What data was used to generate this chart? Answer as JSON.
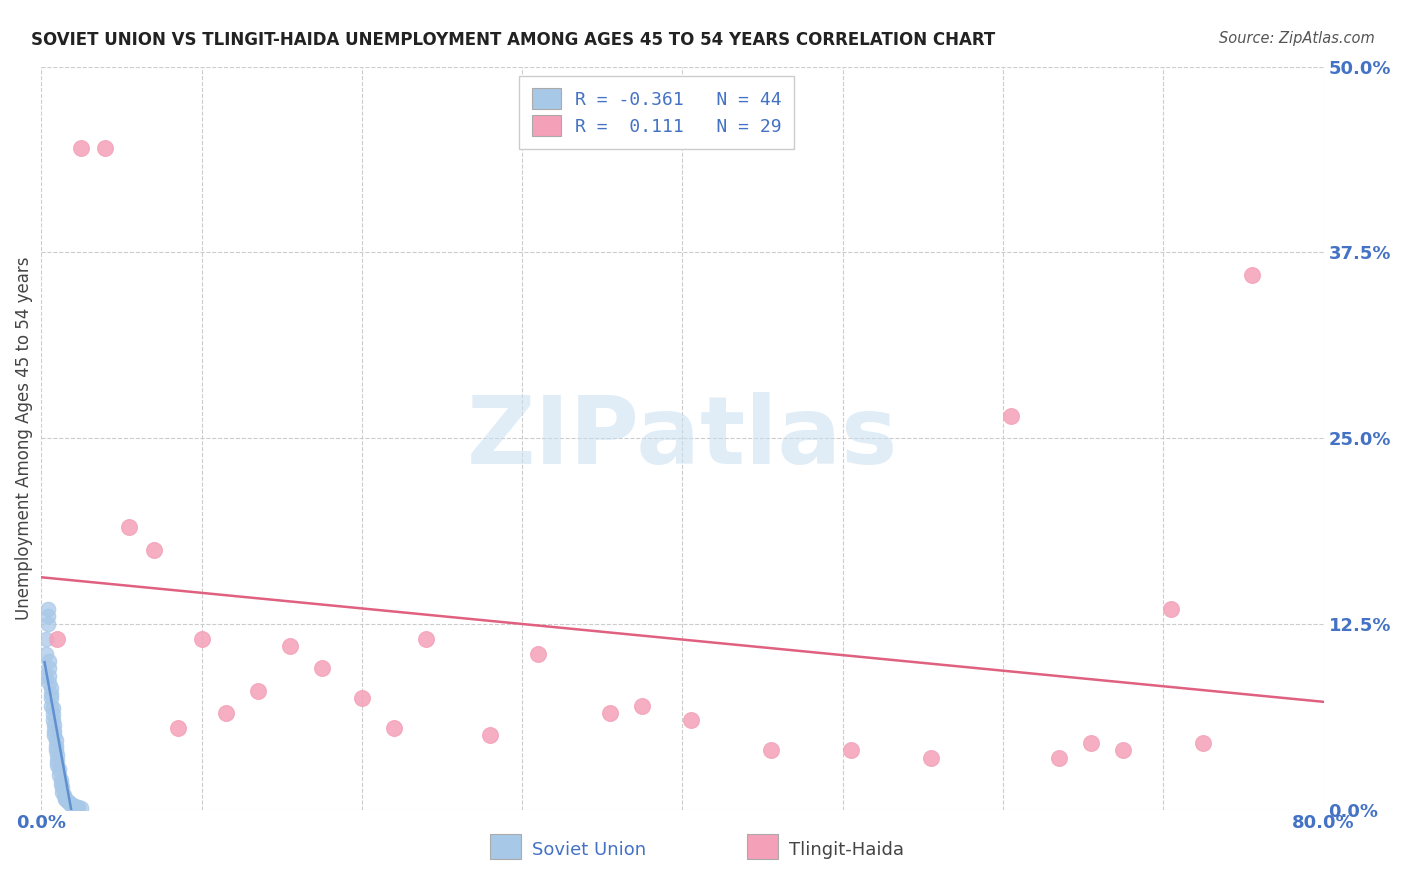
{
  "title": "SOVIET UNION VS TLINGIT-HAIDA UNEMPLOYMENT AMONG AGES 45 TO 54 YEARS CORRELATION CHART",
  "source": "Source: ZipAtlas.com",
  "tick_color": "#4472c4",
  "ylabel": "Unemployment Among Ages 45 to 54 years",
  "xlim": [
    0.0,
    0.8
  ],
  "ylim": [
    0.0,
    0.5
  ],
  "xticks": [
    0.0,
    0.1,
    0.2,
    0.3,
    0.4,
    0.5,
    0.6,
    0.7,
    0.8
  ],
  "yticks": [
    0.0,
    0.125,
    0.25,
    0.375,
    0.5
  ],
  "ytick_labels": [
    "0.0%",
    "12.5%",
    "25.0%",
    "37.5%",
    "50.0%"
  ],
  "xtick_labels": [
    "0.0%",
    "",
    "",
    "",
    "",
    "",
    "",
    "",
    "80.0%"
  ],
  "soviet_color": "#a8c8e8",
  "tlingit_color": "#f4a0b8",
  "soviet_line_color": "#6090d0",
  "tlingit_line_color": "#e06080",
  "background_color": "#ffffff",
  "grid_color": "#cccccc",
  "soviet_points_x": [
    0.002,
    0.003,
    0.003,
    0.004,
    0.004,
    0.004,
    0.005,
    0.005,
    0.005,
    0.005,
    0.006,
    0.006,
    0.006,
    0.006,
    0.007,
    0.007,
    0.007,
    0.008,
    0.008,
    0.008,
    0.009,
    0.009,
    0.009,
    0.01,
    0.01,
    0.01,
    0.011,
    0.011,
    0.012,
    0.012,
    0.013,
    0.013,
    0.014,
    0.015,
    0.015,
    0.016,
    0.017,
    0.018,
    0.019,
    0.02,
    0.021,
    0.022,
    0.023,
    0.025
  ],
  "soviet_points_y": [
    0.09,
    0.105,
    0.115,
    0.13,
    0.125,
    0.135,
    0.1,
    0.095,
    0.09,
    0.085,
    0.082,
    0.078,
    0.075,
    0.07,
    0.068,
    0.064,
    0.06,
    0.057,
    0.053,
    0.05,
    0.047,
    0.043,
    0.04,
    0.037,
    0.033,
    0.03,
    0.027,
    0.023,
    0.02,
    0.017,
    0.015,
    0.012,
    0.01,
    0.008,
    0.007,
    0.006,
    0.005,
    0.004,
    0.003,
    0.003,
    0.002,
    0.002,
    0.002,
    0.001
  ],
  "tlingit_points_x": [
    0.01,
    0.025,
    0.04,
    0.055,
    0.07,
    0.085,
    0.1,
    0.115,
    0.135,
    0.155,
    0.175,
    0.2,
    0.22,
    0.24,
    0.28,
    0.31,
    0.355,
    0.375,
    0.405,
    0.455,
    0.505,
    0.555,
    0.605,
    0.635,
    0.655,
    0.675,
    0.705,
    0.725,
    0.755
  ],
  "tlingit_points_y": [
    0.115,
    0.445,
    0.445,
    0.19,
    0.175,
    0.055,
    0.115,
    0.065,
    0.08,
    0.11,
    0.095,
    0.075,
    0.055,
    0.115,
    0.05,
    0.105,
    0.065,
    0.07,
    0.06,
    0.04,
    0.04,
    0.035,
    0.265,
    0.035,
    0.045,
    0.04,
    0.135,
    0.045,
    0.36
  ],
  "watermark_text": "ZIPatlas",
  "legend_line1": "R = -0.361   N = 44",
  "legend_line2": "R =  0.111   N = 29"
}
